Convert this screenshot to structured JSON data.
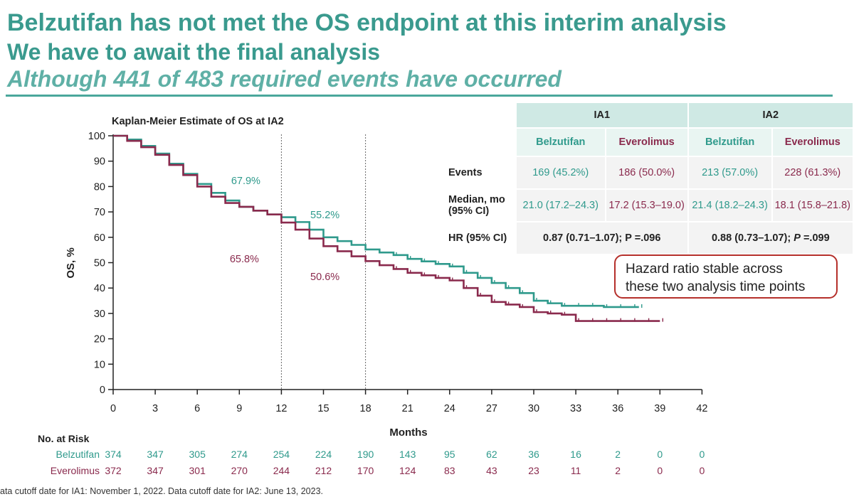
{
  "headline": {
    "line1": "Belzutifan has not met the OS endpoint at this interim analysis",
    "line2": "We have to await the final analysis",
    "line3": "Although 441 of 483 required events have occurred"
  },
  "colors": {
    "belzutifan": "#2f9a8c",
    "everolimus": "#8a2a4d",
    "accent": "#4aa79b",
    "callout_border": "#b5302b"
  },
  "chart_data": {
    "type": "line",
    "title": "Kaplan-Meier Estimate of OS at IA2",
    "xlabel": "Months",
    "ylabel": "OS, %",
    "xlim": [
      0,
      42
    ],
    "ylim": [
      0,
      100
    ],
    "xticks": [
      0,
      3,
      6,
      9,
      12,
      15,
      18,
      21,
      24,
      27,
      30,
      33,
      36,
      39,
      42
    ],
    "yticks": [
      0,
      10,
      20,
      30,
      40,
      50,
      60,
      70,
      80,
      90,
      100
    ],
    "reference_lines_x": [
      12,
      18
    ],
    "series": [
      {
        "name": "Belzutifan",
        "x": [
          0,
          1,
          2,
          3,
          4,
          5,
          6,
          7,
          8,
          9,
          10,
          11,
          12,
          13,
          14,
          15,
          16,
          17,
          18,
          19,
          20,
          21,
          22,
          23,
          24,
          25,
          26,
          27,
          28,
          29,
          30,
          31,
          32,
          33,
          34,
          35,
          36,
          37,
          37.5
        ],
        "y": [
          100,
          98.5,
          96,
          93,
          89,
          85,
          81,
          77.5,
          74.5,
          72,
          70.5,
          69,
          67.9,
          66,
          63,
          60,
          58.5,
          57,
          55.2,
          54,
          53,
          51.5,
          50.5,
          49.5,
          48.5,
          46,
          44,
          42,
          40,
          38,
          35,
          34,
          33,
          33,
          33,
          32.5,
          32.5,
          32.5,
          32.5
        ]
      },
      {
        "name": "Everolimus",
        "x": [
          0,
          1,
          2,
          3,
          4,
          5,
          6,
          7,
          8,
          9,
          10,
          11,
          12,
          13,
          14,
          15,
          16,
          17,
          18,
          19,
          20,
          21,
          22,
          23,
          24,
          25,
          26,
          27,
          28,
          29,
          30,
          31,
          32,
          33,
          34,
          35,
          36,
          37,
          38,
          39
        ],
        "y": [
          100,
          98,
          95.5,
          92.5,
          88.5,
          84.5,
          80,
          76,
          73.5,
          72,
          70.5,
          69,
          65.8,
          63,
          59.5,
          56.5,
          54.5,
          52.5,
          50.6,
          49,
          47.5,
          46,
          45,
          44,
          43,
          40,
          37,
          34.5,
          33.5,
          32.5,
          30.5,
          30,
          29.5,
          27,
          27,
          27,
          27,
          27,
          27,
          27
        ]
      }
    ],
    "annotations": [
      {
        "text": "67.9%",
        "series": "Belzutifan",
        "x": 12
      },
      {
        "text": "65.8%",
        "series": "Everolimus",
        "x": 12
      },
      {
        "text": "55.2%",
        "series": "Belzutifan",
        "x": 18
      },
      {
        "text": "50.6%",
        "series": "Everolimus",
        "x": 18
      }
    ]
  },
  "at_risk": {
    "title": "No. at Risk",
    "rows": [
      {
        "name": "Belzutifan",
        "values": [
          "374",
          "347",
          "305",
          "274",
          "254",
          "224",
          "190",
          "143",
          "95",
          "62",
          "36",
          "16",
          "2",
          "0",
          "0"
        ]
      },
      {
        "name": "Everolimus",
        "values": [
          "372",
          "347",
          "301",
          "270",
          "244",
          "212",
          "170",
          "124",
          "83",
          "43",
          "23",
          "11",
          "2",
          "0",
          "0"
        ]
      }
    ]
  },
  "table": {
    "col_ia1": "IA1",
    "col_ia2": "IA2",
    "drug_a": "Belzutifan",
    "drug_b": "Everolimus",
    "events_label": "Events",
    "events": [
      "169 (45.2%)",
      "186 (50.0%)",
      "213 (57.0%)",
      "228 (61.3%)"
    ],
    "median_label_1": "Median, mo",
    "median_label_2": "(95% CI)",
    "median": [
      "21.0 (17.2–24.3)",
      "17.2 (15.3–19.0)",
      "21.4 (18.2–24.3)",
      "18.1 (15.8–21.8)"
    ],
    "hr_label": "HR (95% CI)",
    "hr_ia1": "0.87 (0.71–1.07); P =.096",
    "hr_ia2_pre": "0.88 (0.73–1.07); ",
    "hr_ia2_p": "P",
    "hr_ia2_post": " =.099"
  },
  "callout": {
    "line1": "Hazard ratio stable across",
    "line2": "these two analysis time points"
  },
  "footnote": "ata cutoff date for IA1: November 1, 2022. Data cutoff date for IA2: June 13, 2023."
}
